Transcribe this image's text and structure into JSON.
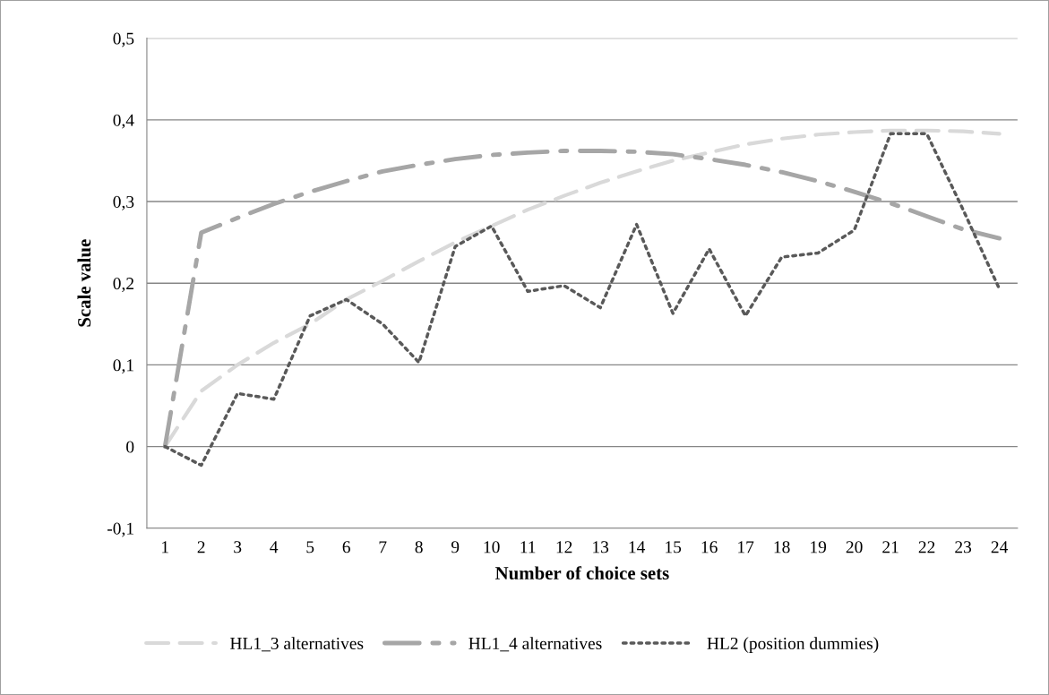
{
  "chart_data": {
    "type": "line",
    "xlabel": "Number of choice sets",
    "ylabel": "Scale value",
    "categories": [
      "1",
      "2",
      "3",
      "4",
      "5",
      "6",
      "7",
      "8",
      "9",
      "10",
      "11",
      "12",
      "13",
      "14",
      "15",
      "16",
      "17",
      "18",
      "19",
      "20",
      "21",
      "22",
      "23",
      "24"
    ],
    "series": [
      {
        "name": "HL1_3 alternatives",
        "color": "#d9d9d9",
        "line_style": "dashed",
        "values": [
          0,
          0.068,
          0.1,
          0.127,
          0.15,
          0.18,
          0.203,
          0.227,
          0.25,
          0.27,
          0.29,
          0.307,
          0.323,
          0.337,
          0.35,
          0.36,
          0.37,
          0.377,
          0.382,
          0.385,
          0.387,
          0.387,
          0.386,
          0.383
        ]
      },
      {
        "name": "HL1_4 alternatives",
        "color": "#a6a6a6",
        "line_style": "dashdot",
        "values": [
          0,
          0.262,
          0.28,
          0.297,
          0.312,
          0.325,
          0.337,
          0.345,
          0.352,
          0.357,
          0.36,
          0.362,
          0.362,
          0.361,
          0.358,
          0.352,
          0.345,
          0.336,
          0.325,
          0.312,
          0.298,
          0.282,
          0.266,
          0.255
        ]
      },
      {
        "name": "HL2 (position dummies)",
        "color": "#595959",
        "line_style": "dotted",
        "values": [
          0,
          -0.023,
          0.065,
          0.058,
          0.16,
          0.18,
          0.15,
          0.103,
          0.245,
          0.27,
          0.19,
          0.197,
          0.17,
          0.272,
          0.163,
          0.242,
          0.16,
          0.232,
          0.237,
          0.265,
          0.383,
          0.383,
          0.29,
          0.193
        ]
      }
    ],
    "ylim": [
      -0.1,
      0.5
    ],
    "yticks": [
      {
        "value": -0.1,
        "label": "-0,1"
      },
      {
        "value": 0,
        "label": "0"
      },
      {
        "value": 0.1,
        "label": "0,1"
      },
      {
        "value": 0.2,
        "label": "0,2"
      },
      {
        "value": 0.3,
        "label": "0,3"
      },
      {
        "value": 0.4,
        "label": "0,4"
      },
      {
        "value": 0.5,
        "label": "0,5"
      }
    ],
    "grid": "y",
    "legend": "bottom",
    "marker": "none"
  }
}
